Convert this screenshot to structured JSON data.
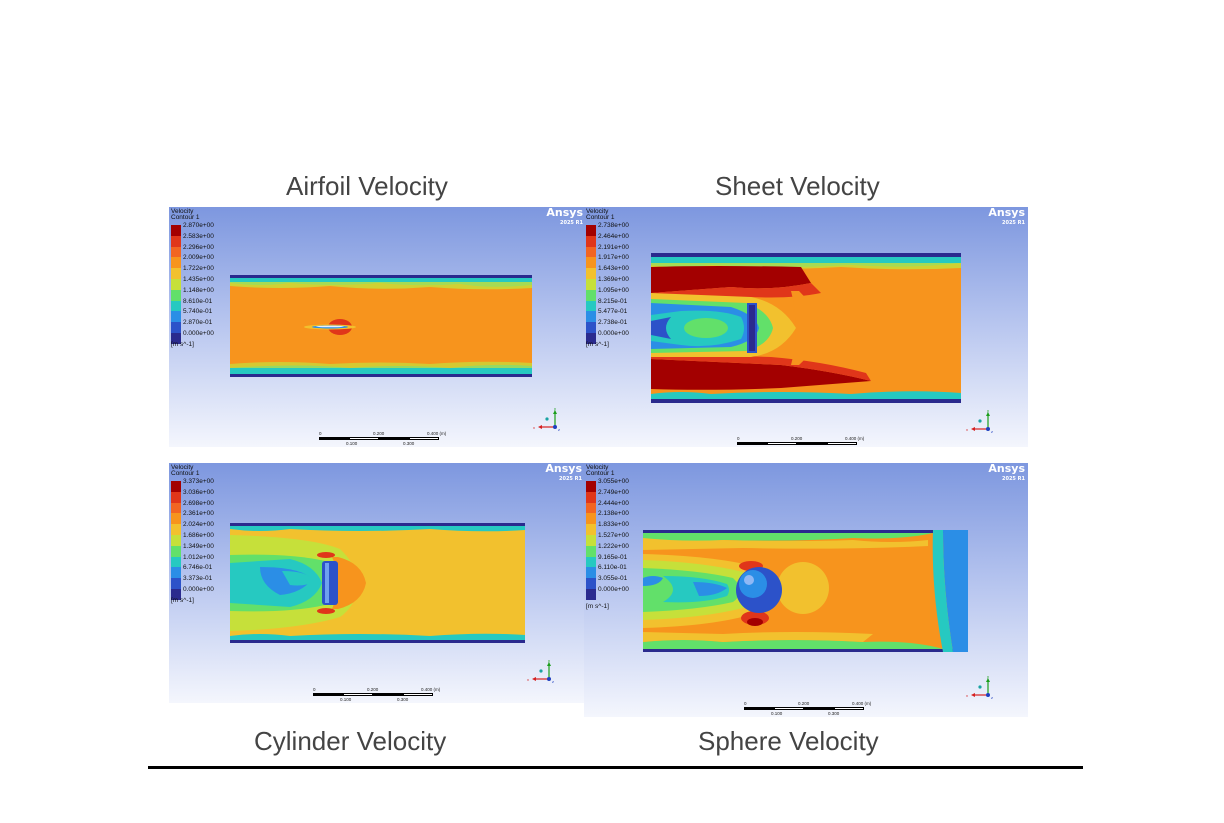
{
  "captions": {
    "airfoil": "Airfoil Velocity",
    "sheet": "Sheet Velocity",
    "cylinder": "Cylinder Velocity",
    "sphere": "Sphere Velocity"
  },
  "brand": {
    "name": "Ansys",
    "version": "2025 R1"
  },
  "legend_common": {
    "title_line1": "Velocity",
    "title_line2": "Contour 1",
    "unit": "[m s^-1]"
  },
  "colormap": [
    "#a30000",
    "#e0361a",
    "#f26522",
    "#f7941d",
    "#f2c12e",
    "#c6e03a",
    "#62e06a",
    "#26c9c1",
    "#2b8ee6",
    "#2c52c9",
    "#2a2a8e"
  ],
  "legends": {
    "airfoil": [
      "2.870e+00",
      "2.583e+00",
      "2.296e+00",
      "2.009e+00",
      "1.722e+00",
      "1.435e+00",
      "1.148e+00",
      "8.610e-01",
      "5.740e-01",
      "2.870e-01",
      "0.000e+00"
    ],
    "sheet": [
      "2.738e+00",
      "2.464e+00",
      "2.191e+00",
      "1.917e+00",
      "1.643e+00",
      "1.369e+00",
      "1.095e+00",
      "8.215e-01",
      "5.477e-01",
      "2.738e-01",
      "0.000e+00"
    ],
    "cylinder": [
      "3.373e+00",
      "3.036e+00",
      "2.698e+00",
      "2.361e+00",
      "2.024e+00",
      "1.686e+00",
      "1.349e+00",
      "1.012e+00",
      "6.746e-01",
      "3.373e-01",
      "0.000e+00"
    ],
    "sphere": [
      "3.055e+00",
      "2.749e+00",
      "2.444e+00",
      "2.138e+00",
      "1.833e+00",
      "1.527e+00",
      "1.222e+00",
      "9.165e-01",
      "6.110e-01",
      "3.055e-01",
      "0.000e+00"
    ]
  },
  "scale_bar": {
    "t0": "0",
    "t1": "0.200",
    "t2": "0.400",
    "unit": "(m)",
    "b1": "0.100",
    "b2": "0.300"
  },
  "axes": {
    "x": "x",
    "y": "y",
    "z": "z"
  }
}
